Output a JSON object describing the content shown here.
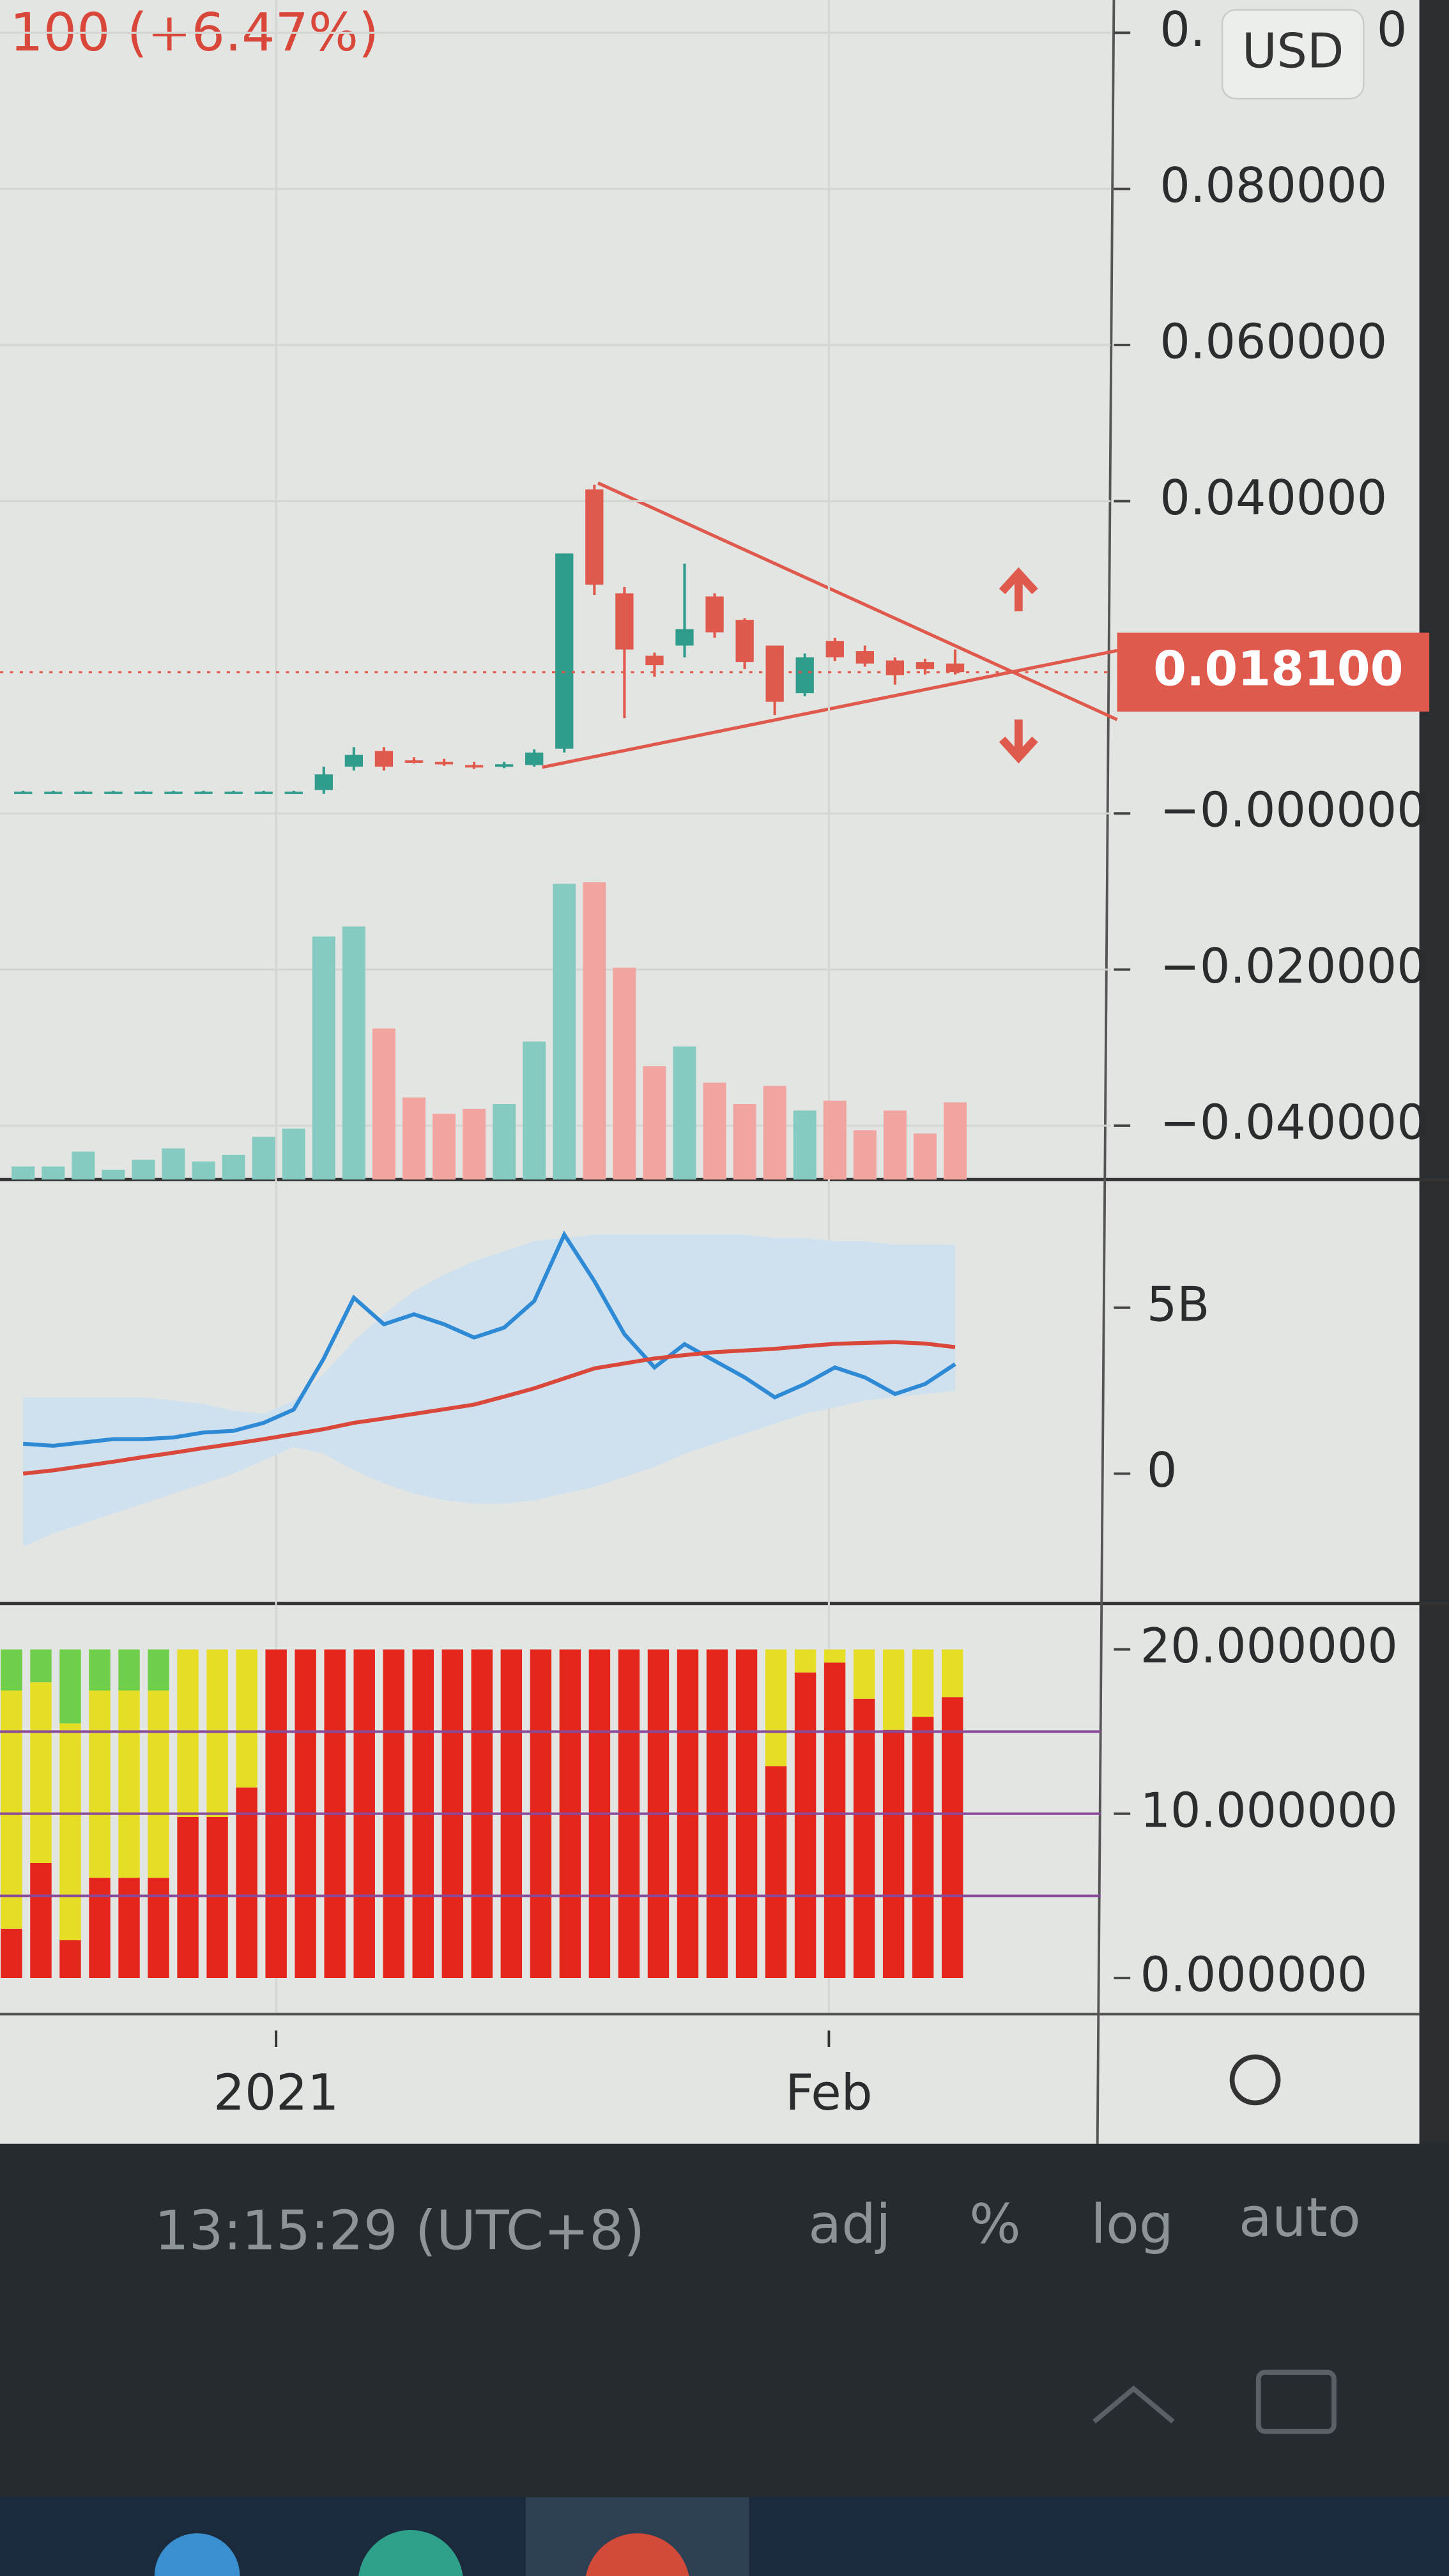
{
  "header": {
    "change": "100 (+6.47%)"
  },
  "price_scale": {
    "currency": "USD",
    "clipped_digit": "0"
  },
  "toolbar": {
    "time": "13:15:29 (UTC+8)",
    "adj": "adj",
    "percent": "%",
    "log": "log",
    "auto": "auto"
  },
  "chart_data": [
    {
      "type": "candlestick",
      "x": [
        0,
        1,
        2,
        3,
        4,
        5,
        6,
        7,
        8,
        9,
        10,
        11,
        12,
        13,
        14,
        15,
        16,
        17,
        18,
        19,
        20,
        21,
        22,
        23,
        24,
        25,
        26,
        27,
        28,
        29,
        30,
        31
      ],
      "open": [
        0.0026,
        0.0026,
        0.0026,
        0.0026,
        0.0026,
        0.0026,
        0.0026,
        0.0026,
        0.0026,
        0.0026,
        0.003,
        0.006,
        0.008,
        0.0068,
        0.0066,
        0.0062,
        0.0061,
        0.0062,
        0.0083,
        0.0415,
        0.0282,
        0.0202,
        0.0215,
        0.0278,
        0.0248,
        0.0215,
        0.0154,
        0.0221,
        0.0208,
        0.0196,
        0.0194,
        0.0192
      ],
      "high": [
        0.0029,
        0.0029,
        0.0029,
        0.0029,
        0.0029,
        0.0029,
        0.0029,
        0.0029,
        0.0029,
        0.0029,
        0.006,
        0.0085,
        0.0085,
        0.0072,
        0.007,
        0.0066,
        0.0066,
        0.0082,
        0.0333,
        0.0421,
        0.029,
        0.0206,
        0.032,
        0.0282,
        0.025,
        0.0215,
        0.0205,
        0.0225,
        0.0215,
        0.02,
        0.0198,
        0.021
      ],
      "low": [
        0.0025,
        0.0025,
        0.0025,
        0.0025,
        0.0025,
        0.0025,
        0.0025,
        0.0025,
        0.0025,
        0.0025,
        0.0025,
        0.0055,
        0.0055,
        0.0064,
        0.0061,
        0.0057,
        0.0058,
        0.006,
        0.0078,
        0.028,
        0.0122,
        0.0175,
        0.02,
        0.0225,
        0.0185,
        0.0126,
        0.015,
        0.0195,
        0.0188,
        0.0165,
        0.0178,
        0.0178
      ],
      "close": [
        0.0028,
        0.0028,
        0.0028,
        0.0028,
        0.0028,
        0.0028,
        0.0028,
        0.0028,
        0.0028,
        0.0028,
        0.005,
        0.0075,
        0.006,
        0.0066,
        0.0064,
        0.006,
        0.0063,
        0.0078,
        0.0333,
        0.0293,
        0.021,
        0.019,
        0.0236,
        0.0232,
        0.0194,
        0.0143,
        0.02,
        0.02,
        0.0192,
        0.0177,
        0.0185,
        0.0181
      ],
      "up_color": "#2f9c8c",
      "down_color": "#e0594d",
      "xlim": [
        -0.77,
        36.17
      ],
      "ylim": [
        -0.0469,
        0.1042
      ],
      "yticks": [
        {
          "value": 0.1,
          "label": "0."
        },
        {
          "value": 0.08,
          "label": "0.080000"
        },
        {
          "value": 0.06,
          "label": "0.060000"
        },
        {
          "value": 0.04,
          "label": "0.040000"
        },
        {
          "value": 0,
          "label": "−0.000000"
        },
        {
          "value": -0.02,
          "label": "−0.020000"
        },
        {
          "value": -0.04,
          "label": "−0.040000"
        }
      ],
      "grid": true,
      "current_price": {
        "value": 0.0181,
        "label": "0.018100",
        "color": "#e0594d"
      },
      "volume": {
        "values": [
          0.8,
          0.8,
          1.7,
          0.6,
          1.2,
          1.9,
          1.1,
          1.5,
          2.6,
          3.1,
          14.8,
          15.4,
          9.2,
          5.0,
          4.0,
          4.3,
          4.6,
          8.4,
          18.0,
          18.1,
          12.9,
          6.9,
          8.1,
          5.9,
          4.6,
          5.7,
          4.2,
          4.8,
          3.0,
          4.2,
          2.8,
          4.7
        ],
        "up_color": "#86cbc1",
        "down_color": "#f0a5a0",
        "ylim": [
          0,
          20
        ]
      }
    },
    {
      "type": "line",
      "x": [
        0,
        1,
        2,
        3,
        4,
        5,
        6,
        7,
        8,
        9,
        10,
        11,
        12,
        13,
        14,
        15,
        16,
        17,
        18,
        19,
        20,
        21,
        22,
        23,
        24,
        25,
        26,
        27,
        28,
        29,
        30,
        31
      ],
      "xlim": [
        -0.77,
        36.17
      ],
      "ylim": [
        -3.86,
        8.76
      ],
      "yticks": [
        {
          "value": 5,
          "label": "5B"
        },
        0
      ],
      "band": {
        "color": "#cfe1ee",
        "upper": [
          2.3,
          2.3,
          2.3,
          2.3,
          2.3,
          2.2,
          2.1,
          1.9,
          1.8,
          2.2,
          3.0,
          4.0,
          4.8,
          5.5,
          6.0,
          6.4,
          6.7,
          7.0,
          7.1,
          7.2,
          7.2,
          7.2,
          7.2,
          7.2,
          7.2,
          7.1,
          7.1,
          7.0,
          7.0,
          6.9,
          6.9,
          6.9
        ],
        "lower": [
          -2.2,
          -1.8,
          -1.5,
          -1.2,
          -0.9,
          -0.6,
          -0.3,
          0,
          0.4,
          0.8,
          0.6,
          0.1,
          -0.3,
          -0.6,
          -0.8,
          -0.9,
          -0.9,
          -0.8,
          -0.6,
          -0.4,
          -0.1,
          0.2,
          0.6,
          0.9,
          1.2,
          1.5,
          1.8,
          2.0,
          2.2,
          2.3,
          2.4,
          2.5
        ]
      },
      "series": [
        {
          "color": "#2f8ad6",
          "values": [
            0.9,
            0.84,
            0.94,
            1.04,
            1.04,
            1.09,
            1.24,
            1.29,
            1.53,
            1.93,
            3.47,
            5.3,
            4.5,
            4.8,
            4.5,
            4.1,
            4.4,
            5.2,
            7.2,
            5.8,
            4.2,
            3.2,
            3.9,
            3.4,
            2.9,
            2.3,
            2.7,
            3.2,
            2.9,
            2.4,
            2.7,
            3.3
          ]
        },
        {
          "color": "#d9483a",
          "values": [
            0.0,
            0.1,
            0.23,
            0.36,
            0.5,
            0.63,
            0.77,
            0.9,
            1.04,
            1.19,
            1.34,
            1.53,
            1.66,
            1.8,
            1.94,
            2.08,
            2.32,
            2.57,
            2.87,
            3.17,
            3.32,
            3.47,
            3.57,
            3.66,
            3.71,
            3.76,
            3.84,
            3.91,
            3.94,
            3.96,
            3.92,
            3.81
          ]
        }
      ]
    },
    {
      "type": "stacked_bar",
      "x": [
        0,
        1,
        2,
        3,
        4,
        5,
        6,
        7,
        8,
        9,
        10,
        11,
        12,
        13,
        14,
        15,
        16,
        17,
        18,
        19,
        20,
        21,
        22,
        23,
        24,
        25,
        26,
        27,
        28,
        29,
        30,
        31,
        32
      ],
      "xlim": [
        -0.39,
        37.38
      ],
      "ylim": [
        -2.1,
        22.6
      ],
      "yticks": [
        {
          "value": 20,
          "label": "20.000000"
        },
        {
          "value": 10,
          "label": "10.000000"
        },
        {
          "value": 0,
          "label": "0.000000"
        }
      ],
      "xticks": [
        {
          "value": 9,
          "label": "2021"
        },
        {
          "value": 27.8,
          "label": "Feb"
        }
      ],
      "hlines": [
        15,
        10,
        5
      ],
      "hline_color": "#8a4a9a",
      "series": [
        {
          "color": "#e4261c",
          "values": [
            3.0,
            7.0,
            2.3,
            6.1,
            6.1,
            6.1,
            9.8,
            9.8,
            11.6,
            20,
            20,
            20,
            20,
            20,
            20,
            20,
            20,
            20,
            20,
            20,
            20,
            20,
            20,
            20,
            20,
            20,
            12.9,
            18.6,
            19.2,
            17.0,
            15.1,
            15.9,
            17.1
          ]
        },
        {
          "color": "#e6dd25",
          "values": [
            14.5,
            11.0,
            13.2,
            11.4,
            11.4,
            11.4,
            10.2,
            10.2,
            8.4,
            0,
            0,
            0,
            0,
            0,
            0,
            0,
            0,
            0,
            0,
            0,
            0,
            0,
            0,
            0,
            0,
            0,
            7.1,
            1.4,
            0.8,
            3.0,
            4.9,
            4.1,
            2.9
          ]
        },
        {
          "color": "#6fcf4a",
          "values": [
            2.5,
            2.0,
            4.5,
            2.5,
            2.5,
            2.5,
            0,
            0,
            0,
            0,
            0,
            0,
            0,
            0,
            0,
            0,
            0,
            0,
            0,
            0,
            0,
            0,
            0,
            0,
            0,
            0,
            0,
            0,
            0,
            0,
            0,
            0,
            0
          ]
        }
      ]
    }
  ]
}
